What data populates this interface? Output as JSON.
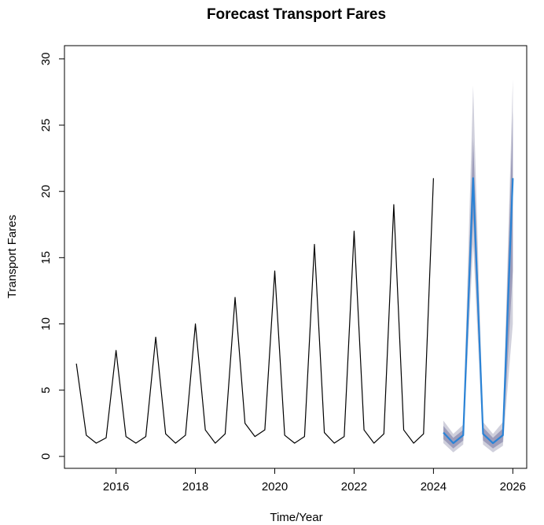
{
  "chart_data": {
    "type": "line",
    "title": "Forecast Transport Fares",
    "xlabel": "Time/Year",
    "ylabel": "Transport Fares",
    "xlim": [
      2014.7,
      2026.35
    ],
    "ylim": [
      -0.9,
      31
    ],
    "x_ticks": [
      2016,
      2018,
      2020,
      2022,
      2024,
      2026
    ],
    "y_ticks": [
      0,
      5,
      10,
      15,
      20,
      25,
      30
    ],
    "grid": false,
    "legend": "none",
    "colors": {
      "history": "#000000",
      "forecast": "#2a83d6",
      "band_outer": "#d0d0dc",
      "band_inner": "#9d9dbb"
    },
    "series": [
      {
        "role": "history",
        "x": [
          2015.0,
          2015.25,
          2015.5,
          2015.75,
          2016.0,
          2016.25,
          2016.5,
          2016.75,
          2017.0,
          2017.25,
          2017.5,
          2017.75,
          2018.0,
          2018.25,
          2018.5,
          2018.75,
          2019.0,
          2019.25,
          2019.5,
          2019.75,
          2020.0,
          2020.25,
          2020.5,
          2020.75,
          2021.0,
          2021.25,
          2021.5,
          2021.75,
          2022.0,
          2022.25,
          2022.5,
          2022.75,
          2023.0,
          2023.25,
          2023.5,
          2023.75,
          2024.0
        ],
        "y": [
          7,
          1.6,
          1.0,
          1.4,
          8,
          1.5,
          1.0,
          1.5,
          9,
          1.7,
          1.0,
          1.6,
          10,
          2.0,
          1.0,
          1.7,
          12,
          2.5,
          1.5,
          2.0,
          14,
          1.6,
          1.0,
          1.5,
          16,
          1.8,
          1.0,
          1.5,
          17,
          2.0,
          1.0,
          1.7,
          19,
          2.0,
          1.0,
          1.7,
          21
        ]
      },
      {
        "role": "forecast",
        "x": [
          2024.25,
          2024.5,
          2024.75,
          2025.0,
          2025.25,
          2025.5,
          2025.75,
          2026.0
        ],
        "y": [
          1.8,
          1.0,
          1.6,
          21,
          1.7,
          1.0,
          1.6,
          21
        ],
        "lo80": [
          1.3,
          0.6,
          1.2,
          18,
          1.2,
          0.6,
          1.1,
          14
        ],
        "hi80": [
          2.3,
          1.4,
          2.0,
          24,
          2.2,
          1.4,
          2.1,
          26
        ],
        "lo95": [
          1.0,
          0.3,
          0.9,
          16,
          0.9,
          0.3,
          0.8,
          10
        ],
        "hi95": [
          2.7,
          1.7,
          2.4,
          28,
          2.6,
          1.7,
          2.6,
          28.5
        ]
      }
    ]
  }
}
